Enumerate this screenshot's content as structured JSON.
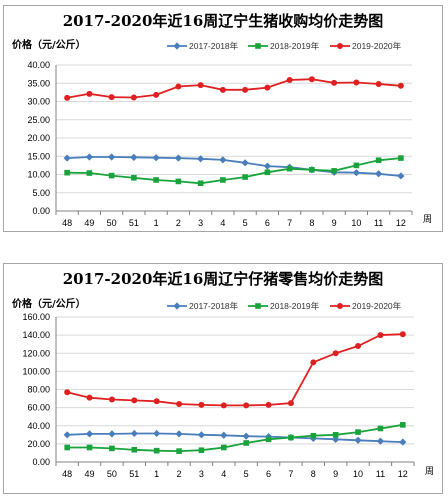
{
  "chart_data": [
    {
      "type": "line",
      "title": "2017-2020年近16周辽宁生猪收购均价走势图",
      "ylabel": "价格（元/公斤）",
      "xlabel": "周",
      "categories": [
        "48",
        "49",
        "50",
        "51",
        "1",
        "2",
        "3",
        "4",
        "5",
        "6",
        "7",
        "8",
        "9",
        "10",
        "11",
        "12"
      ],
      "ylim": [
        0,
        40
      ],
      "yticks": [
        "0.00",
        "5.00",
        "10.00",
        "15.00",
        "20.00",
        "25.00",
        "30.00",
        "35.00",
        "40.00"
      ],
      "grid": true,
      "legend_position": "top",
      "series": [
        {
          "name": "2017-2018年",
          "color": "#4a7ebb",
          "marker": "diamond",
          "values": [
            14.5,
            14.8,
            14.8,
            14.7,
            14.6,
            14.5,
            14.3,
            14.0,
            13.2,
            12.3,
            12.0,
            11.3,
            10.6,
            10.5,
            10.2,
            9.6
          ]
        },
        {
          "name": "2018-2019年",
          "color": "#1aa33c",
          "marker": "square",
          "values": [
            10.5,
            10.4,
            9.7,
            9.1,
            8.5,
            8.1,
            7.6,
            8.5,
            9.3,
            10.6,
            11.6,
            11.3,
            11.0,
            12.5,
            13.9,
            14.5
          ]
        },
        {
          "name": "2019-2020年",
          "color": "#e02020",
          "marker": "circle",
          "values": [
            31.0,
            32.1,
            31.2,
            31.1,
            31.8,
            34.1,
            34.5,
            33.2,
            33.2,
            33.8,
            35.9,
            36.1,
            35.1,
            35.2,
            34.8,
            34.3
          ]
        }
      ]
    },
    {
      "type": "line",
      "title": "2017-2020年近16周辽宁仔猪零售均价走势图",
      "ylabel": "价格（元/公斤）",
      "xlabel": "周",
      "categories": [
        "48",
        "49",
        "50",
        "51",
        "1",
        "2",
        "3",
        "4",
        "5",
        "6",
        "7",
        "8",
        "9",
        "10",
        "11",
        "12"
      ],
      "ylim": [
        0,
        160
      ],
      "yticks": [
        "0.00",
        "20.00",
        "40.00",
        "60.00",
        "80.00",
        "100.00",
        "120.00",
        "140.00",
        "160.00"
      ],
      "grid": true,
      "legend_position": "top",
      "series": [
        {
          "name": "2017-2018年",
          "color": "#4a7ebb",
          "marker": "diamond",
          "values": [
            30,
            31,
            31,
            31.5,
            31.5,
            31,
            30,
            29.5,
            28.5,
            28,
            27,
            26,
            25,
            24,
            23,
            22
          ]
        },
        {
          "name": "2018-2019年",
          "color": "#1aa33c",
          "marker": "square",
          "values": [
            16,
            16,
            15,
            13.5,
            12.5,
            12,
            13,
            16,
            21,
            25,
            27,
            29,
            30,
            33,
            37,
            41
          ]
        },
        {
          "name": "2019-2020年",
          "color": "#e02020",
          "marker": "circle",
          "values": [
            77,
            71,
            69,
            68,
            67,
            64,
            63,
            62.5,
            62.5,
            63,
            65,
            110,
            120,
            128,
            140,
            141
          ]
        }
      ]
    }
  ]
}
